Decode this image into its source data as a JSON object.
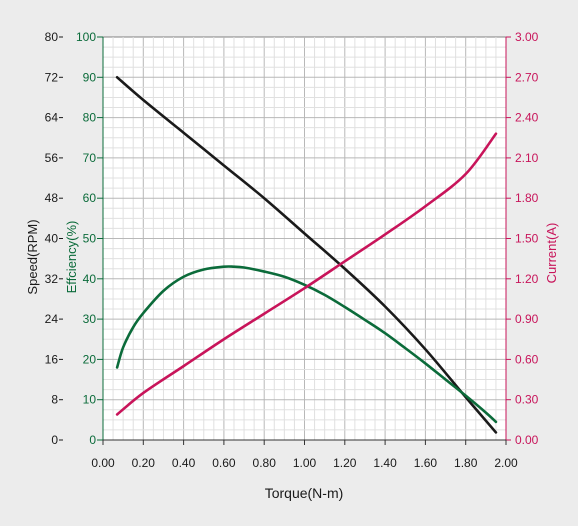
{
  "chart_data": {
    "type": "line",
    "title": "",
    "xlabel": "Torque(N-m)",
    "xlim": [
      0,
      2.0
    ],
    "x_ticks": [
      "0.00",
      "0.20",
      "0.40",
      "0.60",
      "0.80",
      "1.00",
      "1.20",
      "1.40",
      "1.60",
      "1.80",
      "2.00"
    ],
    "grid": true,
    "axes": {
      "speed": {
        "label": "Speed(RPM)",
        "color": "#1a1a1a",
        "ylim": [
          0,
          80
        ],
        "ticks": [
          "0",
          "8",
          "16",
          "24",
          "32",
          "40",
          "48",
          "56",
          "64",
          "72",
          "80"
        ]
      },
      "efficiency": {
        "label": "Effciency(%)",
        "color": "#0b6b3a",
        "ylim": [
          0,
          100
        ],
        "ticks": [
          "0",
          "10",
          "20",
          "30",
          "40",
          "50",
          "60",
          "70",
          "80",
          "90",
          "100"
        ]
      },
      "current": {
        "label": "Current(A)",
        "color": "#c8145a",
        "ylim": [
          0,
          3.0
        ],
        "ticks": [
          "0.00",
          "0.30",
          "0.60",
          "0.90",
          "1.20",
          "1.50",
          "1.80",
          "2.10",
          "2.40",
          "2.70",
          "3.00"
        ]
      }
    },
    "series": [
      {
        "axis": "speed",
        "color": "#1a1a1a",
        "x": [
          0.07,
          0.2,
          0.4,
          0.6,
          0.8,
          1.0,
          1.2,
          1.4,
          1.6,
          1.8,
          1.95
        ],
        "y": [
          72,
          67.5,
          61,
          54.5,
          48,
          41,
          34,
          26.5,
          18,
          8.5,
          1.5
        ]
      },
      {
        "axis": "efficiency",
        "color": "#0b6b3a",
        "x": [
          0.07,
          0.1,
          0.15,
          0.2,
          0.3,
          0.4,
          0.5,
          0.6,
          0.65,
          0.7,
          0.8,
          0.9,
          1.0,
          1.1,
          1.2,
          1.3,
          1.4,
          1.5,
          1.6,
          1.7,
          1.8,
          1.9,
          1.95
        ],
        "y": [
          18,
          23,
          28,
          31.5,
          37,
          40.5,
          42.3,
          43,
          43,
          42.8,
          41.8,
          40.5,
          38.5,
          36,
          33,
          29.8,
          26.5,
          22.8,
          19,
          15,
          11,
          6.8,
          4.5
        ]
      },
      {
        "axis": "current",
        "color": "#c8145a",
        "x": [
          0.07,
          0.2,
          0.4,
          0.6,
          0.8,
          1.0,
          1.2,
          1.4,
          1.6,
          1.8,
          1.95
        ],
        "y": [
          0.19,
          0.35,
          0.55,
          0.75,
          0.94,
          1.13,
          1.33,
          1.53,
          1.74,
          1.98,
          2.28
        ]
      }
    ]
  }
}
